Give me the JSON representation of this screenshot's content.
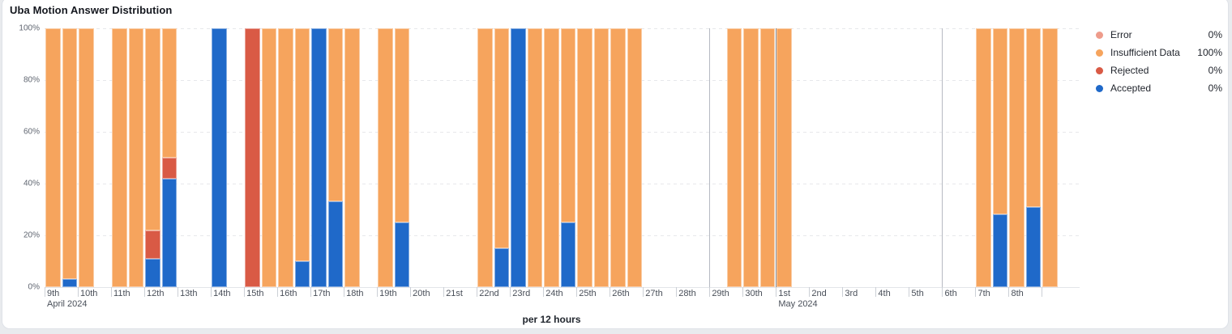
{
  "card": {
    "title": "Uba Motion Answer Distribution"
  },
  "legend": {
    "items": [
      {
        "id": "error",
        "label": "Error",
        "value": "0%"
      },
      {
        "id": "insufficient",
        "label": "Insufficient Data",
        "value": "100%"
      },
      {
        "id": "rejected",
        "label": "Rejected",
        "value": "0%"
      },
      {
        "id": "accepted",
        "label": "Accepted",
        "value": "0%"
      }
    ]
  },
  "chart_data": {
    "type": "bar",
    "stacked": true,
    "unit": "percent",
    "title": "Uba Motion Answer Distribution",
    "xlabel": "per 12 hours",
    "ylim": [
      0,
      100
    ],
    "y_tick_labels": [
      "0%",
      "20%",
      "40%",
      "60%",
      "80%",
      "100%"
    ],
    "grid": "horizontal-dashed",
    "legend_position": "right",
    "slot_count": 61,
    "slot_duration_hours": 12,
    "series_order_bottom_up": [
      "accepted",
      "rejected",
      "insufficient",
      "error"
    ],
    "series_colors": {
      "error": "#ee9c8b",
      "insufficient": "#f6a45d",
      "rejected": "#d95a45",
      "accepted": "#1f69c9"
    },
    "x_ticks": [
      {
        "i": 0,
        "label": "9th",
        "month": "April 2024"
      },
      {
        "i": 2,
        "label": "10th"
      },
      {
        "i": 4,
        "label": "11th"
      },
      {
        "i": 6,
        "label": "12th"
      },
      {
        "i": 8,
        "label": "13th"
      },
      {
        "i": 10,
        "label": "14th"
      },
      {
        "i": 12,
        "label": "15th"
      },
      {
        "i": 14,
        "label": "16th"
      },
      {
        "i": 16,
        "label": "17th"
      },
      {
        "i": 18,
        "label": "18th"
      },
      {
        "i": 20,
        "label": "19th"
      },
      {
        "i": 22,
        "label": "20th"
      },
      {
        "i": 24,
        "label": "21st"
      },
      {
        "i": 26,
        "label": "22nd"
      },
      {
        "i": 28,
        "label": "23rd"
      },
      {
        "i": 30,
        "label": "24th"
      },
      {
        "i": 32,
        "label": "25th"
      },
      {
        "i": 34,
        "label": "26th"
      },
      {
        "i": 36,
        "label": "27th"
      },
      {
        "i": 38,
        "label": "28th"
      },
      {
        "i": 40,
        "label": "29th"
      },
      {
        "i": 42,
        "label": "30th"
      },
      {
        "i": 44,
        "label": "1st",
        "month": "May 2024"
      },
      {
        "i": 46,
        "label": "2nd"
      },
      {
        "i": 48,
        "label": "3rd"
      },
      {
        "i": 50,
        "label": "4th"
      },
      {
        "i": 52,
        "label": "5th"
      },
      {
        "i": 54,
        "label": "6th"
      },
      {
        "i": 56,
        "label": "7th"
      },
      {
        "i": 58,
        "label": "8th"
      },
      {
        "i": 60,
        "label": ""
      }
    ],
    "week_gridlines_at": [
      40,
      54
    ],
    "month_gridline_at": 44,
    "bars": [
      {
        "i": 0,
        "insufficient": 100
      },
      {
        "i": 1,
        "accepted": 3,
        "insufficient": 97
      },
      {
        "i": 2,
        "insufficient": 100
      },
      {
        "i": 4,
        "insufficient": 100
      },
      {
        "i": 5,
        "insufficient": 100
      },
      {
        "i": 6,
        "accepted": 11,
        "rejected": 11,
        "insufficient": 78
      },
      {
        "i": 7,
        "accepted": 42,
        "rejected": 8,
        "insufficient": 50
      },
      {
        "i": 10,
        "accepted": 100
      },
      {
        "i": 12,
        "rejected": 100
      },
      {
        "i": 13,
        "insufficient": 100
      },
      {
        "i": 14,
        "insufficient": 100
      },
      {
        "i": 15,
        "accepted": 10,
        "insufficient": 90
      },
      {
        "i": 16,
        "accepted": 100
      },
      {
        "i": 17,
        "accepted": 33,
        "insufficient": 67
      },
      {
        "i": 18,
        "insufficient": 100
      },
      {
        "i": 20,
        "insufficient": 100
      },
      {
        "i": 21,
        "accepted": 25,
        "insufficient": 75
      },
      {
        "i": 26,
        "insufficient": 100
      },
      {
        "i": 27,
        "accepted": 15,
        "insufficient": 85
      },
      {
        "i": 28,
        "accepted": 100
      },
      {
        "i": 29,
        "insufficient": 100
      },
      {
        "i": 30,
        "insufficient": 100
      },
      {
        "i": 31,
        "accepted": 25,
        "insufficient": 75
      },
      {
        "i": 32,
        "insufficient": 100
      },
      {
        "i": 33,
        "insufficient": 100
      },
      {
        "i": 34,
        "insufficient": 100
      },
      {
        "i": 35,
        "insufficient": 100
      },
      {
        "i": 41,
        "insufficient": 100
      },
      {
        "i": 42,
        "insufficient": 100
      },
      {
        "i": 43,
        "insufficient": 100
      },
      {
        "i": 44,
        "insufficient": 100
      },
      {
        "i": 56,
        "insufficient": 100
      },
      {
        "i": 57,
        "accepted": 28,
        "insufficient": 72
      },
      {
        "i": 58,
        "insufficient": 100
      },
      {
        "i": 59,
        "accepted": 31,
        "insufficient": 69
      },
      {
        "i": 60,
        "insufficient": 100
      }
    ]
  }
}
